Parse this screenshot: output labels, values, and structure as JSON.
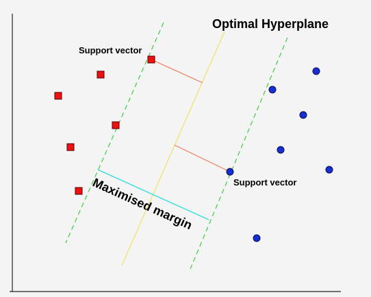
{
  "diagram": {
    "title": "Optimal Hyperplane",
    "support_vector_label_top": "Support vector",
    "support_vector_label_bottom": "Support vector",
    "margin_label": "Maximised margin",
    "colors": {
      "background": "#f4f4f4",
      "class_a_fill": "#ee1111",
      "class_a_stroke": "#550000",
      "class_b_fill": "#1530d0",
      "class_b_stroke": "#0a0a55",
      "hyperplane": "#f2e27a",
      "margin_boundary": "#3ecc3e",
      "margin_width": "#33dddd",
      "distance_line": "#f07a5a",
      "axis": "#222222"
    },
    "class_a_marker": "square",
    "class_b_marker": "circle",
    "hyperplane_style": "solid",
    "margin_boundary_style": "dashed"
  }
}
